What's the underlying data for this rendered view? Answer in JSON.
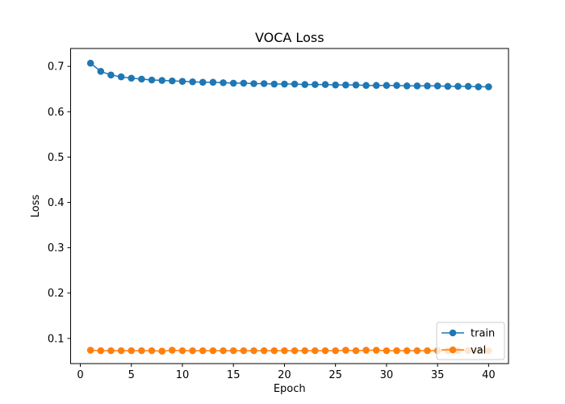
{
  "chart_data": {
    "type": "line",
    "title": "VOCA Loss",
    "xlabel": "Epoch",
    "ylabel": "Loss",
    "xlim": [
      -0.95,
      41.95
    ],
    "ylim": [
      0.0445,
      0.7395
    ],
    "xticks": [
      0,
      5,
      10,
      15,
      20,
      25,
      30,
      35,
      40
    ],
    "yticks": [
      0.1,
      0.2,
      0.3,
      0.4,
      0.5,
      0.6,
      0.7
    ],
    "xtick_labels": [
      "0",
      "5",
      "10",
      "15",
      "20",
      "25",
      "30",
      "35",
      "40"
    ],
    "ytick_labels": [
      "0.1",
      "0.2",
      "0.3",
      "0.4",
      "0.5",
      "0.6",
      "0.7"
    ],
    "grid": false,
    "legend_position": "lower-right",
    "x": [
      1,
      2,
      3,
      4,
      5,
      6,
      7,
      8,
      9,
      10,
      11,
      12,
      13,
      14,
      15,
      16,
      17,
      18,
      19,
      20,
      21,
      22,
      23,
      24,
      25,
      26,
      27,
      28,
      29,
      30,
      31,
      32,
      33,
      34,
      35,
      36,
      37,
      38,
      39,
      40
    ],
    "series": [
      {
        "name": "train",
        "color": "#1f77b4",
        "values": [
          0.707,
          0.689,
          0.681,
          0.677,
          0.674,
          0.672,
          0.67,
          0.669,
          0.668,
          0.667,
          0.666,
          0.665,
          0.665,
          0.664,
          0.663,
          0.663,
          0.662,
          0.662,
          0.661,
          0.661,
          0.661,
          0.66,
          0.66,
          0.66,
          0.659,
          0.659,
          0.659,
          0.658,
          0.658,
          0.658,
          0.658,
          0.657,
          0.657,
          0.657,
          0.657,
          0.656,
          0.656,
          0.656,
          0.655,
          0.655
        ]
      },
      {
        "name": "val",
        "color": "#ff7f0e",
        "values": [
          0.074,
          0.073,
          0.073,
          0.073,
          0.073,
          0.073,
          0.073,
          0.072,
          0.074,
          0.073,
          0.073,
          0.073,
          0.073,
          0.073,
          0.073,
          0.073,
          0.073,
          0.073,
          0.073,
          0.073,
          0.073,
          0.073,
          0.073,
          0.073,
          0.073,
          0.074,
          0.073,
          0.074,
          0.074,
          0.073,
          0.073,
          0.073,
          0.073,
          0.073,
          0.073,
          0.073,
          0.073,
          0.073,
          0.073,
          0.073
        ]
      }
    ]
  }
}
